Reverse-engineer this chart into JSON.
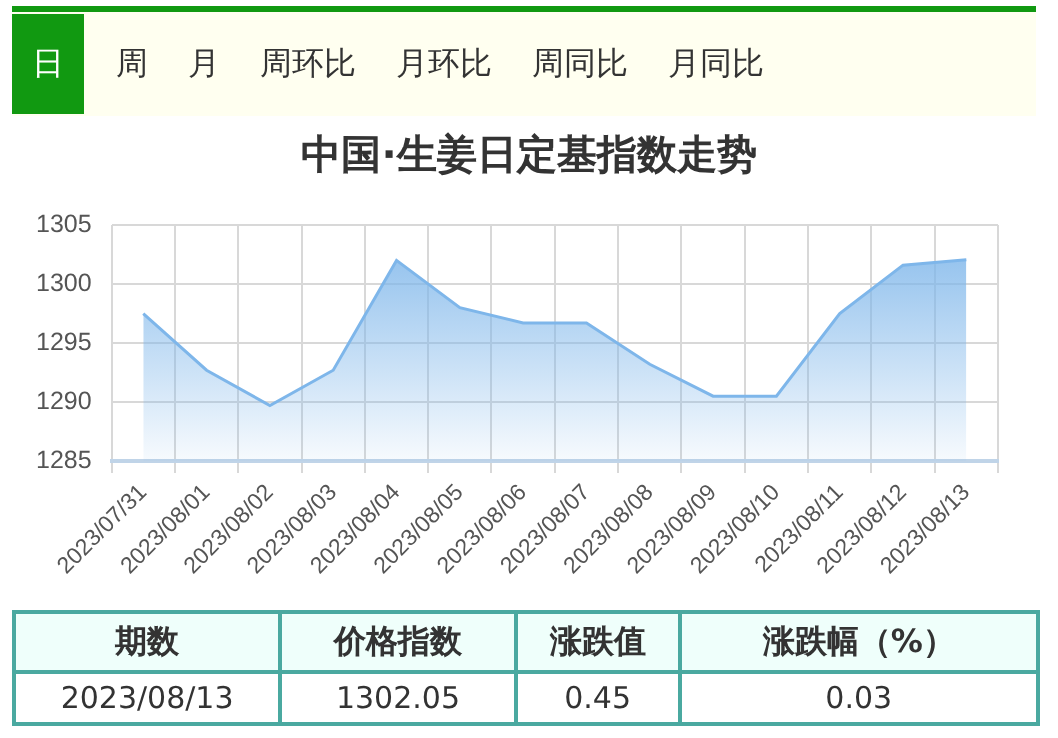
{
  "chart_data": {
    "type": "area",
    "title": "中国·生姜日定基指数走势",
    "categories": [
      "2023/07/31",
      "2023/08/01",
      "2023/08/02",
      "2023/08/03",
      "2023/08/04",
      "2023/08/05",
      "2023/08/06",
      "2023/08/07",
      "2023/08/08",
      "2023/08/09",
      "2023/08/10",
      "2023/08/11",
      "2023/08/12",
      "2023/08/13"
    ],
    "series": [
      {
        "color": "#7eb6ea",
        "values": [
          1297.5,
          1292.7,
          1289.7,
          1292.7,
          1302.0,
          1298.0,
          1296.7,
          1296.7,
          1293.2,
          1290.5,
          1290.5,
          1297.5,
          1301.6,
          1302.05
        ]
      }
    ],
    "ylim": [
      1285,
      1305
    ],
    "yticks": [
      1285,
      1290,
      1295,
      1300,
      1305
    ],
    "grid": true,
    "legend": false,
    "marker": "none",
    "annotations": [
      "日",
      "周",
      "月",
      "周环比",
      "月环比",
      "周同比",
      "月同比",
      "期数",
      "价格指数",
      "涨跌值",
      "涨跌幅（%）",
      "2023/08/13",
      "1302.05",
      "0.45",
      "0.03"
    ]
  }
}
